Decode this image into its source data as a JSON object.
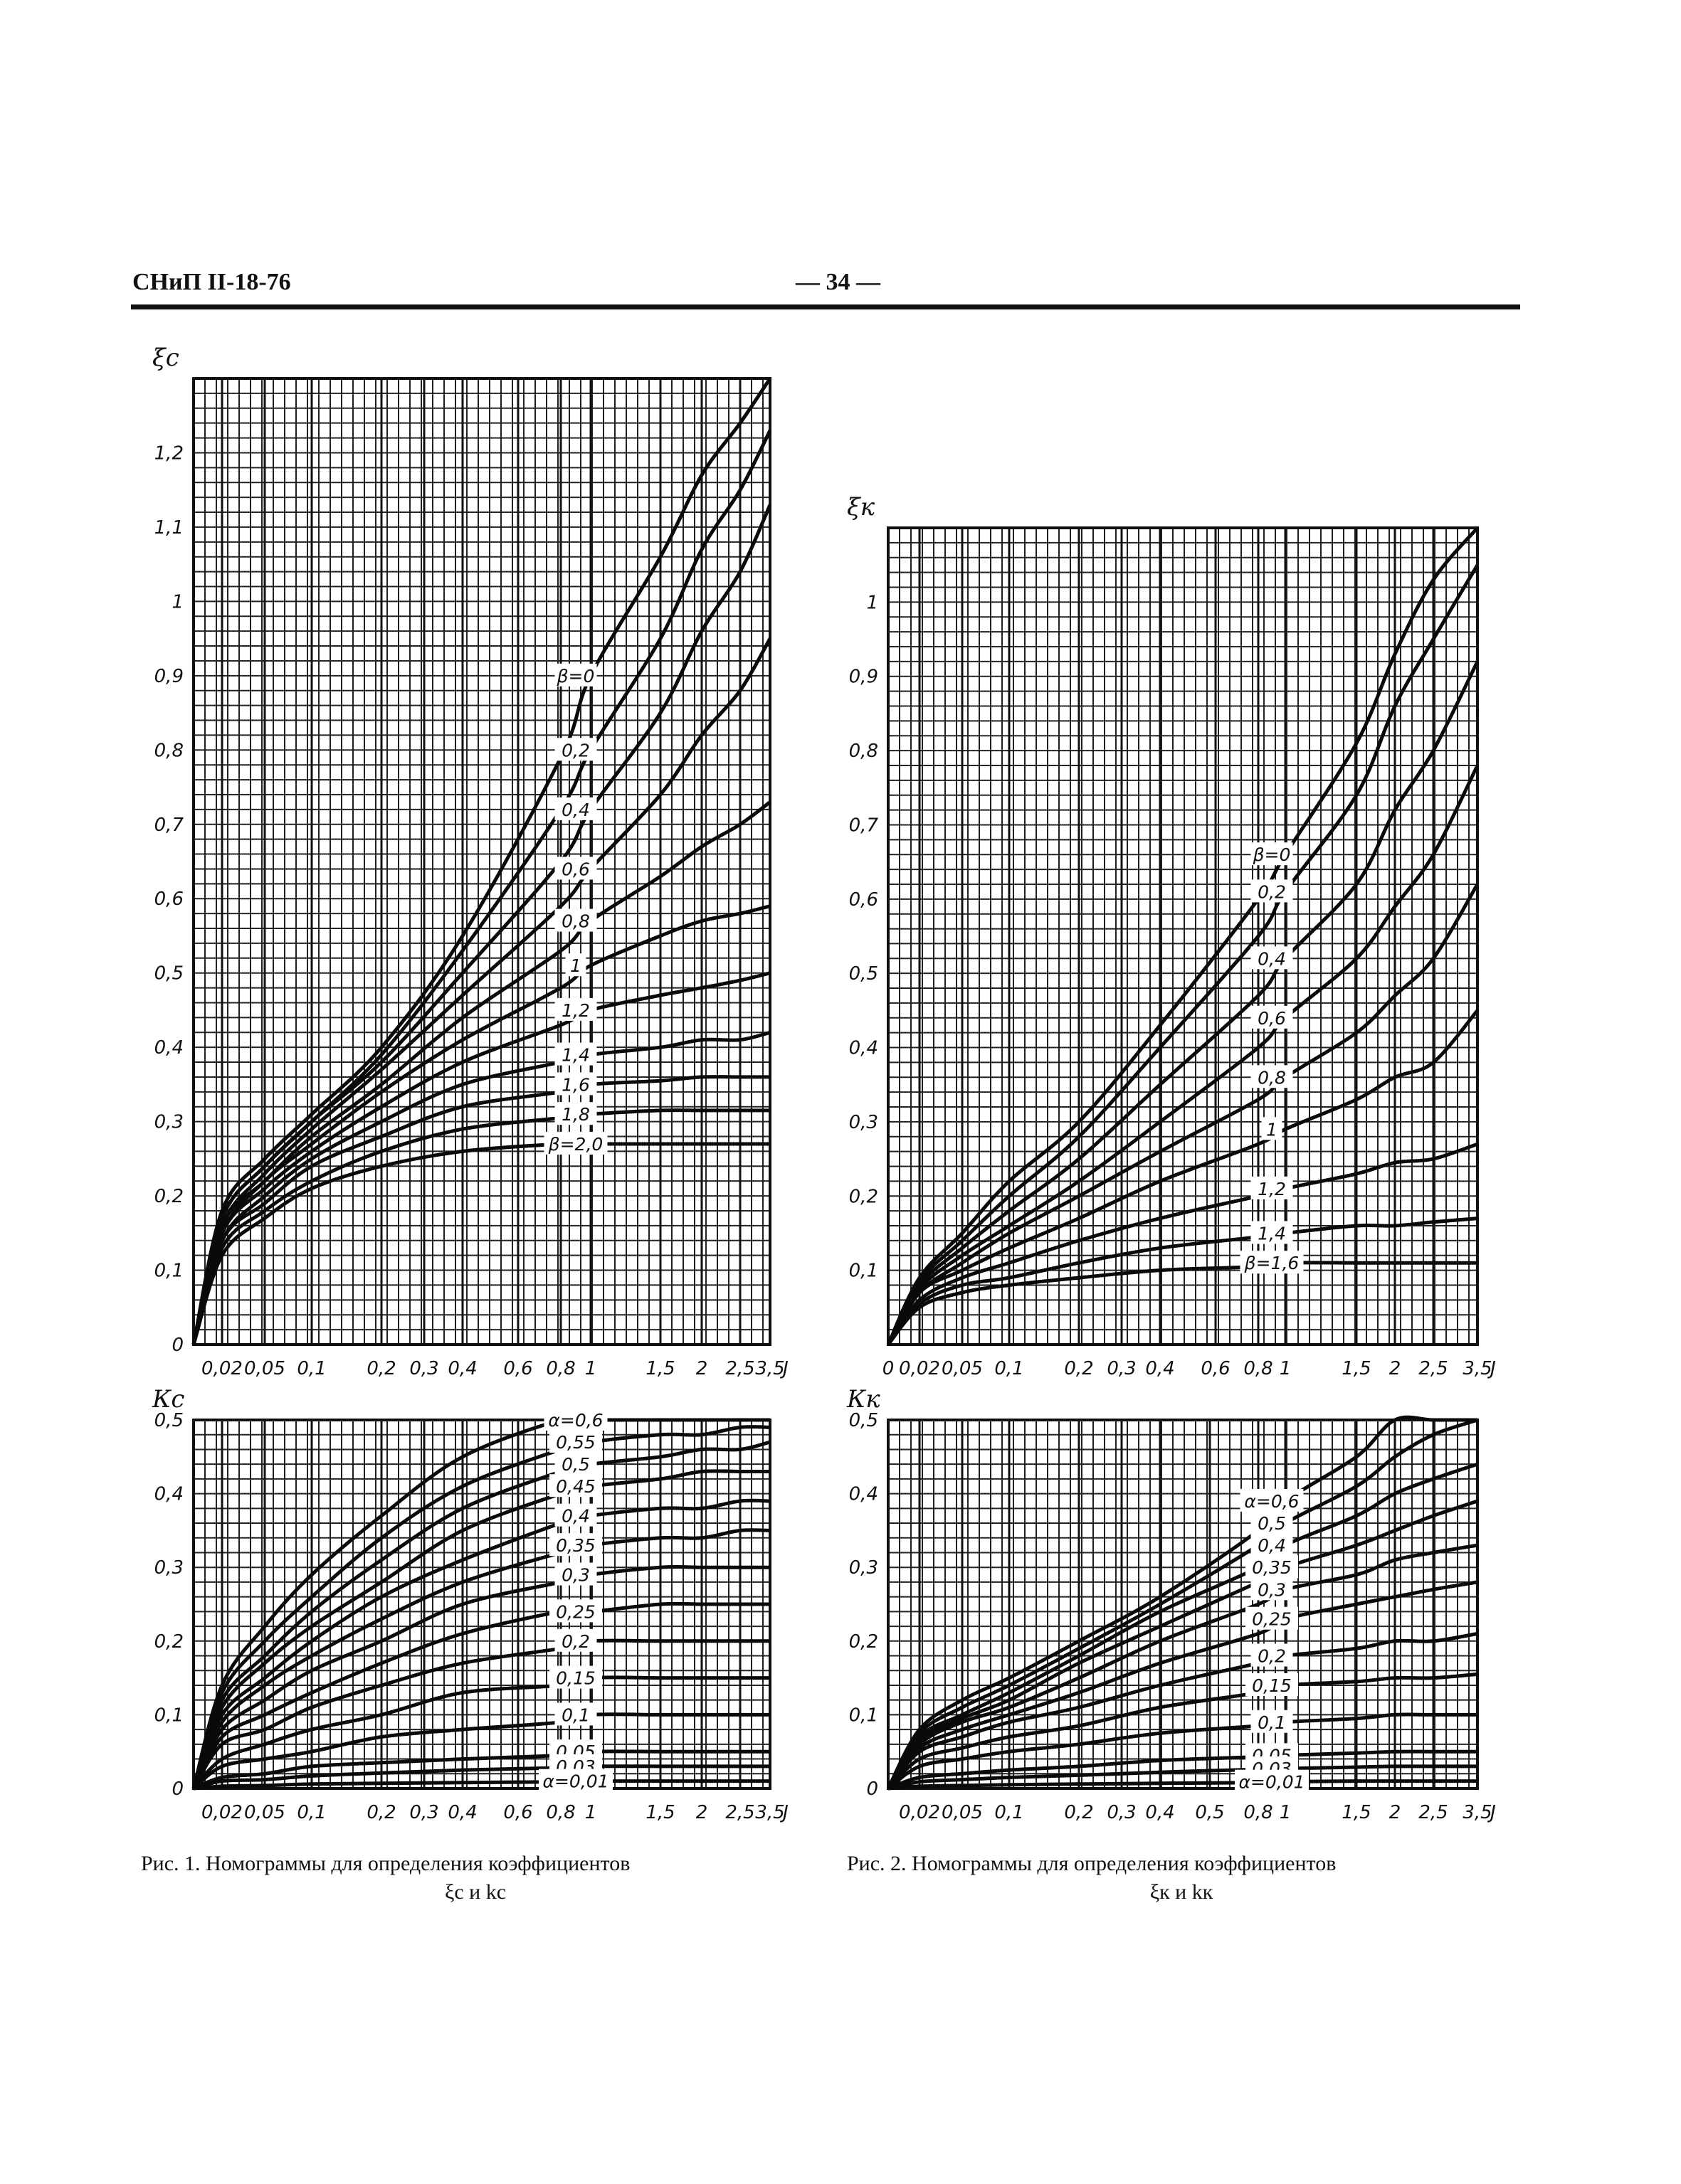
{
  "header": {
    "doc_code": "СНиП II-18-76",
    "page_number": "— 34 —"
  },
  "captions": [
    {
      "line1": "Рис. 1. Номограммы для определения коэффициентов",
      "line2": "ξс и kс"
    },
    {
      "line1": "Рис. 2. Номограммы для определения коэффициентов",
      "line2": "ξк и kк"
    }
  ],
  "chart_data": [
    {
      "id": "xi_c",
      "type": "line",
      "ylabel": "ξс",
      "xlabel": "J",
      "xlim": [
        0,
        3.5
      ],
      "ylim": [
        0,
        1.3
      ],
      "grid": true,
      "x_ticks": [
        "0,02",
        "0,05",
        "0,1",
        "0,2",
        "0,3",
        "0,4",
        "0,6",
        "0,8",
        "1",
        "1,5",
        "2",
        "2,5",
        "3,5",
        "J"
      ],
      "y_ticks": [
        {
          "v": 0,
          "label": "0"
        },
        {
          "v": 0.1,
          "label": "0,1"
        },
        {
          "v": 0.2,
          "label": "0,2"
        },
        {
          "v": 0.3,
          "label": "0,3"
        },
        {
          "v": 0.4,
          "label": "0,4"
        },
        {
          "v": 0.5,
          "label": "0,5"
        },
        {
          "v": 0.6,
          "label": "0,6"
        },
        {
          "v": 0.7,
          "label": "0,7"
        },
        {
          "v": 0.8,
          "label": "0,8"
        },
        {
          "v": 0.9,
          "label": "0,9"
        },
        {
          "v": 1,
          "label": "1"
        },
        {
          "v": 1.1,
          "label": "1,1"
        },
        {
          "v": 1.2,
          "label": "1,2"
        }
      ],
      "x": [
        0,
        0.02,
        0.05,
        0.1,
        0.2,
        0.4,
        0.8,
        1,
        1.5,
        2,
        2.5,
        3.5
      ],
      "series": [
        {
          "name": "β=0",
          "values": [
            0,
            0.18,
            0.25,
            0.31,
            0.4,
            0.55,
            0.79,
            0.9,
            1.06,
            1.17,
            1.24,
            1.3
          ]
        },
        {
          "name": "0,2",
          "values": [
            0,
            0.17,
            0.24,
            0.3,
            0.39,
            0.53,
            0.72,
            0.8,
            0.95,
            1.07,
            1.15,
            1.23
          ]
        },
        {
          "name": "0,4",
          "values": [
            0,
            0.17,
            0.24,
            0.3,
            0.38,
            0.5,
            0.65,
            0.72,
            0.85,
            0.96,
            1.04,
            1.13
          ]
        },
        {
          "name": "0,6",
          "values": [
            0,
            0.16,
            0.23,
            0.29,
            0.37,
            0.47,
            0.59,
            0.64,
            0.74,
            0.82,
            0.88,
            0.95
          ]
        },
        {
          "name": "0,8",
          "values": [
            0,
            0.16,
            0.22,
            0.28,
            0.35,
            0.44,
            0.53,
            0.57,
            0.63,
            0.67,
            0.7,
            0.73
          ]
        },
        {
          "name": "1",
          "values": [
            0,
            0.15,
            0.22,
            0.27,
            0.34,
            0.41,
            0.48,
            0.51,
            0.55,
            0.57,
            0.58,
            0.59
          ]
        },
        {
          "name": "1,2",
          "values": [
            0,
            0.15,
            0.21,
            0.26,
            0.32,
            0.38,
            0.43,
            0.45,
            0.47,
            0.48,
            0.49,
            0.5
          ]
        },
        {
          "name": "1,4",
          "values": [
            0,
            0.14,
            0.2,
            0.25,
            0.3,
            0.35,
            0.38,
            0.39,
            0.4,
            0.41,
            0.41,
            0.42
          ]
        },
        {
          "name": "1,6",
          "values": [
            0,
            0.14,
            0.19,
            0.24,
            0.28,
            0.32,
            0.34,
            0.35,
            0.355,
            0.36,
            0.36,
            0.36
          ]
        },
        {
          "name": "1,8",
          "values": [
            0,
            0.13,
            0.18,
            0.22,
            0.26,
            0.29,
            0.305,
            0.31,
            0.315,
            0.315,
            0.315,
            0.315
          ]
        },
        {
          "name": "β=2,0",
          "values": [
            0,
            0.12,
            0.17,
            0.21,
            0.24,
            0.26,
            0.27,
            0.27,
            0.27,
            0.27,
            0.27,
            0.27
          ]
        }
      ]
    },
    {
      "id": "xi_k",
      "type": "line",
      "ylabel": "ξк",
      "xlabel": "J",
      "xlim": [
        0,
        3.5
      ],
      "ylim": [
        0,
        1.1
      ],
      "grid": true,
      "x_ticks": [
        "0",
        "0,02",
        "0,05",
        "0,1",
        "0,2",
        "0,3",
        "0,4",
        "0,6",
        "0,8",
        "1",
        "1,5",
        "2",
        "2,5",
        "3,5",
        "J"
      ],
      "y_ticks": [
        {
          "v": 0.1,
          "label": "0,1"
        },
        {
          "v": 0.2,
          "label": "0,2"
        },
        {
          "v": 0.3,
          "label": "0,3"
        },
        {
          "v": 0.4,
          "label": "0,4"
        },
        {
          "v": 0.5,
          "label": "0,5"
        },
        {
          "v": 0.6,
          "label": "0,6"
        },
        {
          "v": 0.7,
          "label": "0,7"
        },
        {
          "v": 0.8,
          "label": "0,8"
        },
        {
          "v": 0.9,
          "label": "0,9"
        },
        {
          "v": 1,
          "label": "1"
        }
      ],
      "x": [
        0,
        0.02,
        0.05,
        0.1,
        0.2,
        0.4,
        0.8,
        1,
        1.5,
        2,
        2.5,
        3.5
      ],
      "series": [
        {
          "name": "β=0",
          "values": [
            0,
            0.09,
            0.15,
            0.22,
            0.3,
            0.43,
            0.6,
            0.66,
            0.81,
            0.93,
            1.03,
            1.1
          ]
        },
        {
          "name": "0,2",
          "values": [
            0,
            0.085,
            0.14,
            0.2,
            0.28,
            0.4,
            0.55,
            0.61,
            0.74,
            0.86,
            0.95,
            1.05
          ]
        },
        {
          "name": "0,4",
          "values": [
            0,
            0.08,
            0.13,
            0.18,
            0.25,
            0.35,
            0.47,
            0.52,
            0.62,
            0.72,
            0.8,
            0.92
          ]
        },
        {
          "name": "0,6",
          "values": [
            0,
            0.075,
            0.12,
            0.16,
            0.22,
            0.3,
            0.4,
            0.44,
            0.52,
            0.59,
            0.66,
            0.78
          ]
        },
        {
          "name": "0,8",
          "values": [
            0,
            0.07,
            0.11,
            0.15,
            0.2,
            0.26,
            0.33,
            0.36,
            0.42,
            0.47,
            0.52,
            0.62
          ]
        },
        {
          "name": "1",
          "values": [
            0,
            0.07,
            0.1,
            0.13,
            0.17,
            0.22,
            0.27,
            0.29,
            0.33,
            0.36,
            0.38,
            0.45
          ]
        },
        {
          "name": "1,2",
          "values": [
            0,
            0.06,
            0.09,
            0.11,
            0.14,
            0.17,
            0.2,
            0.21,
            0.23,
            0.245,
            0.25,
            0.27
          ]
        },
        {
          "name": "1,4",
          "values": [
            0,
            0.055,
            0.08,
            0.09,
            0.11,
            0.13,
            0.145,
            0.15,
            0.16,
            0.16,
            0.165,
            0.17
          ]
        },
        {
          "name": "β=1,6",
          "values": [
            0,
            0.05,
            0.07,
            0.08,
            0.09,
            0.1,
            0.105,
            0.11,
            0.11,
            0.11,
            0.11,
            0.11
          ]
        }
      ]
    },
    {
      "id": "k_c",
      "type": "line",
      "ylabel": "Кс",
      "xlabel": "J",
      "xlim": [
        0,
        3.5
      ],
      "ylim": [
        0,
        0.5
      ],
      "grid": true,
      "x_ticks": [
        "0,02",
        "0,05",
        "0,1",
        "0,2",
        "0,3",
        "0,4",
        "0,6",
        "0,8",
        "1",
        "1,5",
        "2",
        "2,5",
        "3,5",
        "J"
      ],
      "y_ticks": [
        {
          "v": 0,
          "label": "0"
        },
        {
          "v": 0.1,
          "label": "0,1"
        },
        {
          "v": 0.2,
          "label": "0,2"
        },
        {
          "v": 0.3,
          "label": "0,3"
        },
        {
          "v": 0.4,
          "label": "0,4"
        },
        {
          "v": 0.5,
          "label": "0,5"
        }
      ],
      "x": [
        0,
        0.02,
        0.05,
        0.1,
        0.2,
        0.4,
        0.8,
        1,
        1.5,
        2,
        2.5,
        3.5
      ],
      "series": [
        {
          "name": "α=0,6",
          "values": [
            0,
            0.14,
            0.22,
            0.29,
            0.37,
            0.45,
            0.5,
            0.5,
            0.5,
            0.5,
            0.5,
            0.5
          ]
        },
        {
          "name": "0,55",
          "values": [
            0,
            0.13,
            0.2,
            0.26,
            0.34,
            0.41,
            0.46,
            0.47,
            0.48,
            0.48,
            0.49,
            0.49
          ]
        },
        {
          "name": "0,5",
          "values": [
            0,
            0.12,
            0.18,
            0.24,
            0.31,
            0.38,
            0.43,
            0.44,
            0.45,
            0.46,
            0.46,
            0.47
          ]
        },
        {
          "name": "0,45",
          "values": [
            0,
            0.11,
            0.17,
            0.22,
            0.28,
            0.35,
            0.4,
            0.41,
            0.42,
            0.43,
            0.43,
            0.43
          ]
        },
        {
          "name": "0,4",
          "values": [
            0,
            0.1,
            0.15,
            0.2,
            0.26,
            0.31,
            0.36,
            0.37,
            0.38,
            0.38,
            0.39,
            0.39
          ]
        },
        {
          "name": "0,35",
          "values": [
            0,
            0.09,
            0.14,
            0.18,
            0.23,
            0.28,
            0.32,
            0.33,
            0.34,
            0.34,
            0.35,
            0.35
          ]
        },
        {
          "name": "0,3",
          "values": [
            0,
            0.08,
            0.12,
            0.16,
            0.2,
            0.25,
            0.28,
            0.29,
            0.3,
            0.3,
            0.3,
            0.3
          ]
        },
        {
          "name": "0,25",
          "values": [
            0,
            0.07,
            0.1,
            0.13,
            0.17,
            0.21,
            0.24,
            0.24,
            0.25,
            0.25,
            0.25,
            0.25
          ]
        },
        {
          "name": "0,2",
          "values": [
            0,
            0.06,
            0.08,
            0.11,
            0.14,
            0.17,
            0.19,
            0.2,
            0.2,
            0.2,
            0.2,
            0.2
          ]
        },
        {
          "name": "0,15",
          "values": [
            0,
            0.04,
            0.06,
            0.08,
            0.1,
            0.13,
            0.14,
            0.15,
            0.15,
            0.15,
            0.15,
            0.15
          ]
        },
        {
          "name": "0,1",
          "values": [
            0,
            0.03,
            0.04,
            0.05,
            0.07,
            0.08,
            0.09,
            0.1,
            0.1,
            0.1,
            0.1,
            0.1
          ]
        },
        {
          "name": "0,05",
          "values": [
            0,
            0.015,
            0.02,
            0.03,
            0.035,
            0.04,
            0.045,
            0.05,
            0.05,
            0.05,
            0.05,
            0.05
          ]
        },
        {
          "name": "0,03",
          "values": [
            0,
            0.01,
            0.012,
            0.017,
            0.021,
            0.025,
            0.028,
            0.03,
            0.03,
            0.03,
            0.03,
            0.03
          ]
        },
        {
          "name": "α=0,01",
          "values": [
            0,
            0.003,
            0.004,
            0.006,
            0.007,
            0.008,
            0.009,
            0.01,
            0.01,
            0.01,
            0.01,
            0.01
          ]
        }
      ]
    },
    {
      "id": "k_k",
      "type": "line",
      "ylabel": "Кк",
      "xlabel": "J",
      "xlim": [
        0,
        3.5
      ],
      "ylim": [
        0,
        0.5
      ],
      "grid": true,
      "x_ticks": [
        "0,02",
        "0,05",
        "0,1",
        "0,2",
        "0,3",
        "0,4",
        "0,5",
        "0,8",
        "1",
        "1,5",
        "2",
        "2,5",
        "3,5",
        "J"
      ],
      "y_ticks": [
        {
          "v": 0,
          "label": "0"
        },
        {
          "v": 0.1,
          "label": "0,1"
        },
        {
          "v": 0.2,
          "label": "0,2"
        },
        {
          "v": 0.3,
          "label": "0,3"
        },
        {
          "v": 0.4,
          "label": "0,4"
        },
        {
          "v": 0.5,
          "label": "0,5"
        }
      ],
      "x": [
        0,
        0.02,
        0.05,
        0.1,
        0.2,
        0.4,
        0.8,
        1,
        1.5,
        2,
        2.5,
        3.5
      ],
      "series": [
        {
          "name": "α=0,6",
          "values": [
            0,
            0.08,
            0.12,
            0.15,
            0.2,
            0.26,
            0.35,
            0.39,
            0.45,
            0.5,
            0.5,
            0.5
          ]
        },
        {
          "name": "0,5",
          "values": [
            0,
            0.075,
            0.11,
            0.14,
            0.19,
            0.25,
            0.33,
            0.36,
            0.41,
            0.45,
            0.48,
            0.5
          ]
        },
        {
          "name": "0,4",
          "values": [
            0,
            0.07,
            0.1,
            0.13,
            0.18,
            0.24,
            0.3,
            0.33,
            0.37,
            0.4,
            0.42,
            0.44
          ]
        },
        {
          "name": "0,35",
          "values": [
            0,
            0.065,
            0.095,
            0.12,
            0.17,
            0.22,
            0.28,
            0.3,
            0.33,
            0.35,
            0.37,
            0.39
          ]
        },
        {
          "name": "0,3",
          "values": [
            0,
            0.06,
            0.09,
            0.11,
            0.15,
            0.2,
            0.25,
            0.27,
            0.29,
            0.31,
            0.32,
            0.33
          ]
        },
        {
          "name": "0,25",
          "values": [
            0,
            0.055,
            0.08,
            0.1,
            0.13,
            0.17,
            0.21,
            0.23,
            0.25,
            0.26,
            0.27,
            0.28
          ]
        },
        {
          "name": "0,2",
          "values": [
            0,
            0.05,
            0.07,
            0.09,
            0.11,
            0.14,
            0.17,
            0.18,
            0.19,
            0.2,
            0.2,
            0.21
          ]
        },
        {
          "name": "0,15",
          "values": [
            0,
            0.04,
            0.055,
            0.07,
            0.085,
            0.11,
            0.13,
            0.14,
            0.145,
            0.15,
            0.15,
            0.155
          ]
        },
        {
          "name": "0,1",
          "values": [
            0,
            0.03,
            0.04,
            0.05,
            0.06,
            0.075,
            0.085,
            0.09,
            0.095,
            0.1,
            0.1,
            0.1
          ]
        },
        {
          "name": "0,05",
          "values": [
            0,
            0.015,
            0.02,
            0.025,
            0.03,
            0.038,
            0.043,
            0.045,
            0.048,
            0.05,
            0.05,
            0.05
          ]
        },
        {
          "name": "0,03",
          "values": [
            0,
            0.009,
            0.012,
            0.015,
            0.018,
            0.022,
            0.026,
            0.027,
            0.029,
            0.03,
            0.03,
            0.03
          ]
        },
        {
          "name": "α=0,01",
          "values": [
            0,
            0.003,
            0.004,
            0.005,
            0.006,
            0.007,
            0.008,
            0.009,
            0.01,
            0.01,
            0.01,
            0.01
          ]
        }
      ]
    }
  ]
}
